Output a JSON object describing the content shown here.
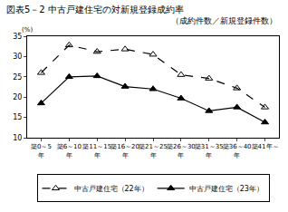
{
  "chart_data": {
    "type": "line",
    "title": "図表5－2 中古戸建住宅の対新規登録成約率",
    "subtitle": "（成約件数／新規登録件数）",
    "y_label": "(%)",
    "categories": [
      "築0～5年",
      "築6～10年",
      "築11～15年",
      "築16～20年",
      "築21～25年",
      "築26～30年",
      "築31～35年",
      "築36～40年",
      "築41年～"
    ],
    "series": [
      {
        "name": "中古戸建住宅（22年）",
        "color": "#000000",
        "marker": "triangle-up-open",
        "line_style": "dash",
        "values": [
          26,
          32.8,
          31.2,
          31.8,
          30.5,
          25.5,
          24.6,
          22.2,
          17.5
        ]
      },
      {
        "name": "中古戸建住宅（23年）",
        "color": "#000000",
        "marker": "triangle-up",
        "line_style": "solid",
        "values": [
          18.5,
          25,
          25.2,
          22.6,
          22,
          19.7,
          16.6,
          17.5,
          13.8
        ]
      }
    ],
    "ylim": [
      10,
      35
    ],
    "yticks": [
      10,
      15,
      20,
      25,
      30,
      35
    ],
    "grid": false,
    "legend": "bottom"
  }
}
